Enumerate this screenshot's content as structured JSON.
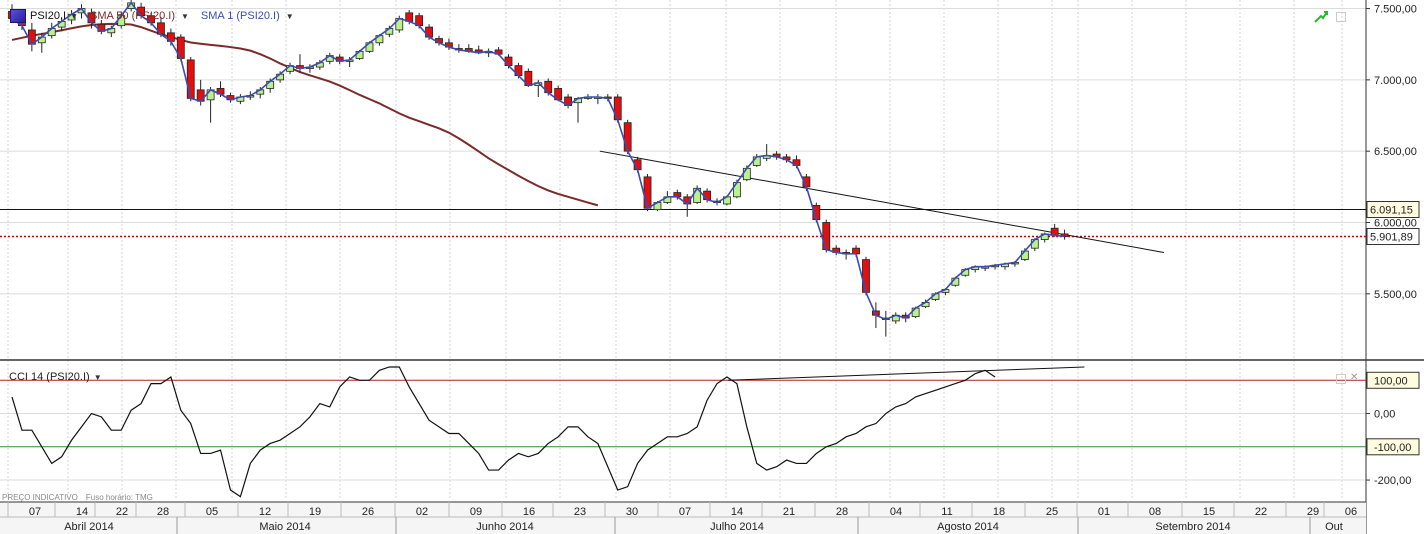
{
  "main_legend": {
    "symbol": "PSI20.I",
    "sma50": "SMA 50 (PSI20.I)",
    "sma1": "SMA 1 (PSI20.I)"
  },
  "cci_legend": {
    "label": "CCI 14 (PSI20.I)"
  },
  "footer": {
    "price_note": "PREÇO INDICATIVO",
    "timezone": "Fuso horário: TMG"
  },
  "colors": {
    "up_candle": "#b9f28a",
    "down_candle": "#e01010",
    "sma50_line": "#7b2a2a",
    "sma1_line": "#3a4cb0",
    "cci_line": "#111111",
    "cci_upper_line": "#b22222",
    "cci_lower_line": "#2e8b2e",
    "last_price_line": "#cc0000"
  },
  "chart_data": [
    {
      "type": "candlestick",
      "title": "PSI20.I",
      "price_axis_ticks": [
        "7.500,00",
        "7.000,00",
        "6.500,00",
        "6.000,00",
        "5.500,00"
      ],
      "price_axis_tick_values": [
        7500,
        7000,
        6500,
        6000,
        5500
      ],
      "ylim": [
        5050,
        7560
      ],
      "price_tags": [
        {
          "label": "6.091,15",
          "value": 6091.15,
          "style": "black-line"
        },
        {
          "label": "5.901,89",
          "value": 5901.89,
          "style": "red-dotted"
        }
      ],
      "day_ticks": [
        "07",
        "14",
        "22",
        "28",
        "05",
        "12",
        "19",
        "26",
        "02",
        "09",
        "16",
        "23",
        "30",
        "07",
        "14",
        "21",
        "28",
        "04",
        "11",
        "18",
        "25",
        "01",
        "08",
        "15",
        "22",
        "29",
        "06"
      ],
      "month_labels": [
        "Abril 2014",
        "Maio 2014",
        "Junho 2014",
        "Julho 2014",
        "Agosto 2014",
        "Setembro 2014",
        "Out"
      ],
      "candles": [
        {
          "o": 7480,
          "h": 7530,
          "l": 7410,
          "c": 7430
        },
        {
          "o": 7440,
          "h": 7480,
          "l": 7350,
          "c": 7380
        },
        {
          "o": 7350,
          "h": 7400,
          "l": 7200,
          "c": 7250
        },
        {
          "o": 7260,
          "h": 7330,
          "l": 7190,
          "c": 7300
        },
        {
          "o": 7310,
          "h": 7400,
          "l": 7290,
          "c": 7360
        },
        {
          "o": 7370,
          "h": 7440,
          "l": 7340,
          "c": 7410
        },
        {
          "o": 7420,
          "h": 7490,
          "l": 7390,
          "c": 7460
        },
        {
          "o": 7470,
          "h": 7530,
          "l": 7430,
          "c": 7500
        },
        {
          "o": 7470,
          "h": 7500,
          "l": 7360,
          "c": 7400
        },
        {
          "o": 7390,
          "h": 7420,
          "l": 7320,
          "c": 7340
        },
        {
          "o": 7330,
          "h": 7380,
          "l": 7300,
          "c": 7360
        },
        {
          "o": 7380,
          "h": 7480,
          "l": 7360,
          "c": 7450
        },
        {
          "o": 7500,
          "h": 7560,
          "l": 7480,
          "c": 7540
        },
        {
          "o": 7510,
          "h": 7540,
          "l": 7430,
          "c": 7450
        },
        {
          "o": 7450,
          "h": 7470,
          "l": 7380,
          "c": 7400
        },
        {
          "o": 7400,
          "h": 7440,
          "l": 7300,
          "c": 7320
        },
        {
          "o": 7330,
          "h": 7360,
          "l": 7240,
          "c": 7270
        },
        {
          "o": 7300,
          "h": 7320,
          "l": 7130,
          "c": 7150
        },
        {
          "o": 7140,
          "h": 7160,
          "l": 6850,
          "c": 6870
        },
        {
          "o": 6930,
          "h": 7000,
          "l": 6820,
          "c": 6850
        },
        {
          "o": 6860,
          "h": 6950,
          "l": 6700,
          "c": 6930
        },
        {
          "o": 6940,
          "h": 6990,
          "l": 6880,
          "c": 6900
        },
        {
          "o": 6890,
          "h": 6910,
          "l": 6840,
          "c": 6860
        },
        {
          "o": 6850,
          "h": 6900,
          "l": 6830,
          "c": 6880
        },
        {
          "o": 6880,
          "h": 6920,
          "l": 6860,
          "c": 6890
        },
        {
          "o": 6900,
          "h": 6950,
          "l": 6870,
          "c": 6930
        },
        {
          "o": 6940,
          "h": 7010,
          "l": 6910,
          "c": 6990
        },
        {
          "o": 7000,
          "h": 7060,
          "l": 6980,
          "c": 7040
        },
        {
          "o": 7060,
          "h": 7120,
          "l": 7040,
          "c": 7100
        },
        {
          "o": 7100,
          "h": 7180,
          "l": 7050,
          "c": 7080
        },
        {
          "o": 7080,
          "h": 7110,
          "l": 7050,
          "c": 7090
        },
        {
          "o": 7090,
          "h": 7140,
          "l": 7070,
          "c": 7120
        },
        {
          "o": 7130,
          "h": 7190,
          "l": 7110,
          "c": 7170
        },
        {
          "o": 7160,
          "h": 7180,
          "l": 7110,
          "c": 7130
        },
        {
          "o": 7130,
          "h": 7160,
          "l": 7090,
          "c": 7140
        },
        {
          "o": 7150,
          "h": 7210,
          "l": 7140,
          "c": 7200
        },
        {
          "o": 7200,
          "h": 7270,
          "l": 7190,
          "c": 7260
        },
        {
          "o": 7260,
          "h": 7320,
          "l": 7240,
          "c": 7310
        },
        {
          "o": 7320,
          "h": 7380,
          "l": 7300,
          "c": 7360
        },
        {
          "o": 7350,
          "h": 7450,
          "l": 7330,
          "c": 7430
        },
        {
          "o": 7470,
          "h": 7490,
          "l": 7390,
          "c": 7410
        },
        {
          "o": 7450,
          "h": 7470,
          "l": 7360,
          "c": 7380
        },
        {
          "o": 7370,
          "h": 7390,
          "l": 7280,
          "c": 7300
        },
        {
          "o": 7290,
          "h": 7310,
          "l": 7240,
          "c": 7260
        },
        {
          "o": 7260,
          "h": 7290,
          "l": 7210,
          "c": 7230
        },
        {
          "o": 7220,
          "h": 7250,
          "l": 7190,
          "c": 7210
        },
        {
          "o": 7220,
          "h": 7250,
          "l": 7190,
          "c": 7200
        },
        {
          "o": 7210,
          "h": 7240,
          "l": 7180,
          "c": 7190
        },
        {
          "o": 7190,
          "h": 7220,
          "l": 7160,
          "c": 7200
        },
        {
          "o": 7210,
          "h": 7230,
          "l": 7170,
          "c": 7180
        },
        {
          "o": 7160,
          "h": 7180,
          "l": 7080,
          "c": 7100
        },
        {
          "o": 7100,
          "h": 7120,
          "l": 7010,
          "c": 7030
        },
        {
          "o": 7060,
          "h": 7080,
          "l": 6950,
          "c": 6960
        },
        {
          "o": 6960,
          "h": 7000,
          "l": 6880,
          "c": 6980
        },
        {
          "o": 6990,
          "h": 7010,
          "l": 6890,
          "c": 6910
        },
        {
          "o": 6940,
          "h": 6960,
          "l": 6850,
          "c": 6860
        },
        {
          "o": 6880,
          "h": 6900,
          "l": 6800,
          "c": 6820
        },
        {
          "o": 6840,
          "h": 6880,
          "l": 6700,
          "c": 6870
        },
        {
          "o": 6880,
          "h": 6900,
          "l": 6860,
          "c": 6880
        },
        {
          "o": 6870,
          "h": 6900,
          "l": 6830,
          "c": 6880
        },
        {
          "o": 6880,
          "h": 6900,
          "l": 6850,
          "c": 6870
        },
        {
          "o": 6880,
          "h": 6900,
          "l": 6700,
          "c": 6720
        },
        {
          "o": 6700,
          "h": 6720,
          "l": 6480,
          "c": 6500
        },
        {
          "o": 6440,
          "h": 6460,
          "l": 6350,
          "c": 6370
        },
        {
          "o": 6320,
          "h": 6340,
          "l": 6080,
          "c": 6100
        },
        {
          "o": 6090,
          "h": 6150,
          "l": 6080,
          "c": 6140
        },
        {
          "o": 6140,
          "h": 6220,
          "l": 6130,
          "c": 6180
        },
        {
          "o": 6210,
          "h": 6230,
          "l": 6160,
          "c": 6180
        },
        {
          "o": 6180,
          "h": 6200,
          "l": 6040,
          "c": 6130
        },
        {
          "o": 6140,
          "h": 6260,
          "l": 6130,
          "c": 6240
        },
        {
          "o": 6220,
          "h": 6240,
          "l": 6140,
          "c": 6160
        },
        {
          "o": 6150,
          "h": 6170,
          "l": 6120,
          "c": 6140
        },
        {
          "o": 6130,
          "h": 6190,
          "l": 6120,
          "c": 6180
        },
        {
          "o": 6180,
          "h": 6300,
          "l": 6170,
          "c": 6280
        },
        {
          "o": 6300,
          "h": 6400,
          "l": 6290,
          "c": 6380
        },
        {
          "o": 6400,
          "h": 6480,
          "l": 6390,
          "c": 6460
        },
        {
          "o": 6450,
          "h": 6550,
          "l": 6430,
          "c": 6470
        },
        {
          "o": 6480,
          "h": 6500,
          "l": 6440,
          "c": 6460
        },
        {
          "o": 6460,
          "h": 6480,
          "l": 6420,
          "c": 6440
        },
        {
          "o": 6440,
          "h": 6470,
          "l": 6380,
          "c": 6400
        },
        {
          "o": 6320,
          "h": 6340,
          "l": 6220,
          "c": 6250
        },
        {
          "o": 6120,
          "h": 6140,
          "l": 6000,
          "c": 6020
        },
        {
          "o": 6000,
          "h": 6020,
          "l": 5790,
          "c": 5810
        },
        {
          "o": 5820,
          "h": 5840,
          "l": 5770,
          "c": 5790
        },
        {
          "o": 5790,
          "h": 5810,
          "l": 5740,
          "c": 5780
        },
        {
          "o": 5820,
          "h": 5840,
          "l": 5760,
          "c": 5780
        },
        {
          "o": 5740,
          "h": 5760,
          "l": 5490,
          "c": 5510
        },
        {
          "o": 5380,
          "h": 5440,
          "l": 5260,
          "c": 5350
        },
        {
          "o": 5330,
          "h": 5380,
          "l": 5200,
          "c": 5320
        },
        {
          "o": 5310,
          "h": 5370,
          "l": 5290,
          "c": 5350
        },
        {
          "o": 5350,
          "h": 5370,
          "l": 5300,
          "c": 5330
        },
        {
          "o": 5340,
          "h": 5410,
          "l": 5330,
          "c": 5400
        },
        {
          "o": 5410,
          "h": 5460,
          "l": 5400,
          "c": 5440
        },
        {
          "o": 5460,
          "h": 5510,
          "l": 5450,
          "c": 5500
        },
        {
          "o": 5510,
          "h": 5540,
          "l": 5490,
          "c": 5530
        },
        {
          "o": 5560,
          "h": 5620,
          "l": 5550,
          "c": 5610
        },
        {
          "o": 5630,
          "h": 5680,
          "l": 5620,
          "c": 5670
        },
        {
          "o": 5670,
          "h": 5700,
          "l": 5650,
          "c": 5690
        },
        {
          "o": 5680,
          "h": 5700,
          "l": 5660,
          "c": 5690
        },
        {
          "o": 5690,
          "h": 5710,
          "l": 5670,
          "c": 5700
        },
        {
          "o": 5690,
          "h": 5720,
          "l": 5670,
          "c": 5710
        },
        {
          "o": 5710,
          "h": 5730,
          "l": 5690,
          "c": 5720
        },
        {
          "o": 5740,
          "h": 5820,
          "l": 5730,
          "c": 5800
        },
        {
          "o": 5820,
          "h": 5890,
          "l": 5800,
          "c": 5880
        },
        {
          "o": 5880,
          "h": 5930,
          "l": 5860,
          "c": 5920
        },
        {
          "o": 5960,
          "h": 5990,
          "l": 5900,
          "c": 5910
        },
        {
          "o": 5920,
          "h": 5950,
          "l": 5880,
          "c": 5902
        }
      ],
      "sma50": [
        7280,
        7295,
        7310,
        7322,
        7335,
        7348,
        7362,
        7375,
        7385,
        7390,
        7393,
        7392,
        7388,
        7370,
        7345,
        7320,
        7300,
        7280,
        7262,
        7253,
        7245,
        7238,
        7230,
        7220,
        7205,
        7180,
        7150,
        7115,
        7085,
        7055,
        7032,
        7010,
        6988,
        6960,
        6928,
        6895,
        6865,
        6835,
        6800,
        6765,
        6735,
        6710,
        6685,
        6660,
        6630,
        6590,
        6545,
        6498,
        6450,
        6408,
        6368,
        6328,
        6290,
        6255,
        6225,
        6200,
        6180,
        6160,
        6140,
        6120
      ],
      "trendline_price": {
        "from": [
          59.2,
          6500
        ],
        "to": [
          116.0,
          5790
        ]
      },
      "horizontal_lines": [
        6091.15,
        5901.89
      ]
    },
    {
      "type": "line",
      "title": "CCI 14 (PSI20.I)",
      "ylim": [
        -260,
        155
      ],
      "cci_axis_ticks": [
        "100,00",
        "0,00",
        "-100,00",
        "-200,00"
      ],
      "cci_axis_tick_values": [
        100,
        0,
        -100,
        -200
      ],
      "reference_lines": [
        100,
        -100
      ],
      "values": [
        50,
        -50,
        -50,
        -100,
        -150,
        -130,
        -80,
        -40,
        0,
        -10,
        -50,
        -50,
        10,
        30,
        90,
        90,
        110,
        10,
        -30,
        -120,
        -120,
        -110,
        -230,
        -250,
        -150,
        -110,
        -90,
        -80,
        -60,
        -40,
        -10,
        30,
        20,
        80,
        110,
        100,
        100,
        130,
        140,
        140,
        80,
        30,
        -20,
        -40,
        -60,
        -60,
        -90,
        -120,
        -170,
        -170,
        -140,
        -120,
        -130,
        -120,
        -90,
        -70,
        -40,
        -40,
        -70,
        -90,
        -160,
        -230,
        -220,
        -150,
        -110,
        -90,
        -70,
        -70,
        -60,
        -40,
        40,
        90,
        110,
        90,
        -40,
        -150,
        -170,
        -160,
        -140,
        -150,
        -150,
        -120,
        -100,
        -90,
        -70,
        -60,
        -40,
        -30,
        0,
        20,
        30,
        50,
        60,
        70,
        80,
        90,
        100,
        120,
        130,
        110
      ],
      "trendline_cci": {
        "from": [
          60,
          100
        ],
        "to": [
          108,
          140
        ]
      }
    }
  ]
}
